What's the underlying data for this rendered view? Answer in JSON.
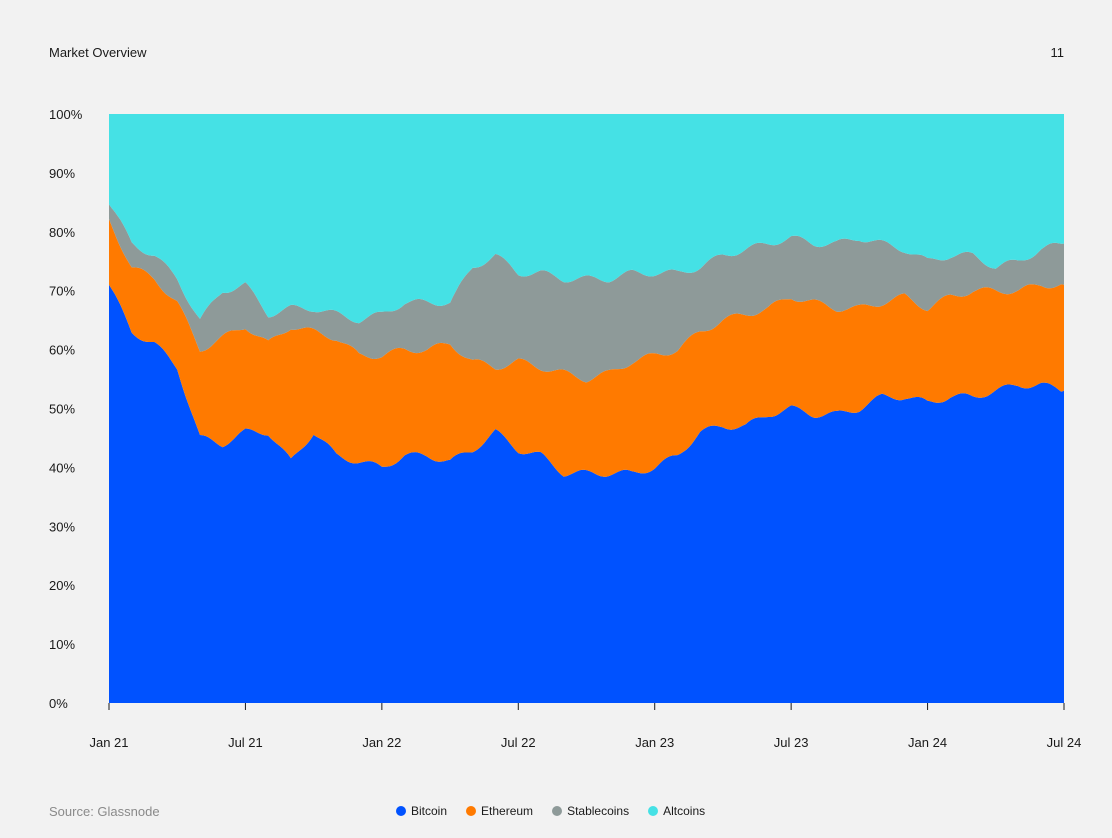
{
  "header": {
    "title": "Market Overview",
    "page_number": "11"
  },
  "source": "Source: Glassnode",
  "chart_data": {
    "type": "area",
    "stacked": true,
    "normalized": true,
    "title": "",
    "xlabel": "",
    "ylabel": "",
    "ylim": [
      0,
      100
    ],
    "y_ticks": [
      "0%",
      "10%",
      "20%",
      "30%",
      "40%",
      "50%",
      "60%",
      "70%",
      "80%",
      "90%",
      "100%"
    ],
    "x_ticks": [
      "Jan 21",
      "Jul 21",
      "Jan 22",
      "Jul 22",
      "Jan 23",
      "Jul 23",
      "Jan 24",
      "Jul 24"
    ],
    "x": [
      "2021-01",
      "2021-02",
      "2021-03",
      "2021-04",
      "2021-05",
      "2021-06",
      "2021-07",
      "2021-08",
      "2021-09",
      "2021-10",
      "2021-11",
      "2021-12",
      "2022-01",
      "2022-02",
      "2022-03",
      "2022-04",
      "2022-05",
      "2022-06",
      "2022-07",
      "2022-08",
      "2022-09",
      "2022-10",
      "2022-11",
      "2022-12",
      "2023-01",
      "2023-02",
      "2023-03",
      "2023-04",
      "2023-05",
      "2023-06",
      "2023-07",
      "2023-08",
      "2023-09",
      "2023-10",
      "2023-11",
      "2023-12",
      "2024-01",
      "2024-02",
      "2024-03",
      "2024-04",
      "2024-05",
      "2024-06",
      "2024-07"
    ],
    "series": [
      {
        "name": "Bitcoin",
        "color": "#0052ff",
        "values": [
          71,
          63,
          61,
          57,
          45,
          44,
          46,
          46,
          41,
          46,
          42,
          41,
          40,
          42,
          42,
          41,
          43,
          46,
          43,
          42,
          39,
          39,
          39,
          39,
          40,
          42,
          46,
          47,
          47,
          49,
          50,
          49,
          49,
          50,
          52,
          52,
          51,
          52,
          52,
          53,
          54,
          54,
          53
        ]
      },
      {
        "name": "Ethereum",
        "color": "#ff7a00",
        "values": [
          11,
          11,
          11,
          11,
          15,
          18,
          18,
          15,
          23,
          17,
          20,
          18,
          19,
          18,
          18,
          20,
          15,
          11,
          15,
          15,
          17,
          16,
          17,
          19,
          19,
          18,
          17,
          18,
          19,
          18,
          19,
          19,
          18,
          17,
          16,
          17,
          16,
          17,
          18,
          17,
          16,
          17,
          18
        ]
      },
      {
        "name": "Stablecoins",
        "color": "#8e9a99",
        "values": [
          3,
          4,
          4,
          4,
          5,
          8,
          7,
          5,
          3,
          4,
          4,
          6,
          7,
          8,
          8,
          7,
          16,
          19,
          15,
          16,
          16,
          17,
          16,
          15,
          14,
          13,
          11,
          11,
          11,
          11,
          10,
          10,
          11,
          12,
          10,
          8,
          8,
          7,
          6,
          4,
          5,
          6,
          7
        ]
      },
      {
        "name": "Altcoins",
        "color": "#45e1e5",
        "values": [
          15,
          22,
          24,
          28,
          35,
          30,
          29,
          34,
          33,
          33,
          34,
          35,
          34,
          32,
          32,
          32,
          26,
          24,
          27,
          27,
          28,
          28,
          28,
          27,
          27,
          27,
          26,
          24,
          23,
          22,
          21,
          22,
          22,
          21,
          22,
          23,
          25,
          24,
          24,
          26,
          25,
          23,
          22
        ]
      }
    ],
    "legend_position": "bottom-center"
  }
}
